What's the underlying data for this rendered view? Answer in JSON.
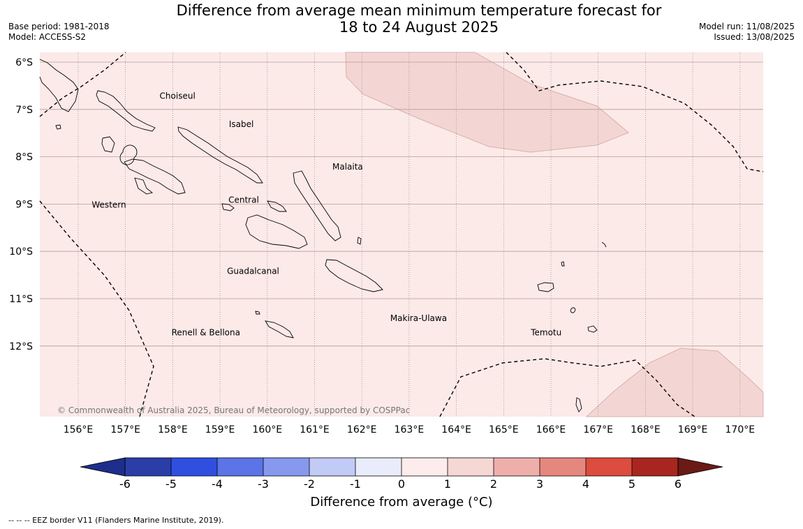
{
  "header": {
    "title_line1": "Difference from average mean minimum temperature forecast for",
    "title_line2": "18 to 24 August 2025",
    "base_period": "Base period: 1981-2018",
    "model": "Model: ACCESS-S2",
    "model_run": "Model run: 11/08/2025",
    "issued": "Issued: 13/08/2025"
  },
  "map": {
    "lat_labels": [
      "6°S",
      "7°S",
      "8°S",
      "9°S",
      "10°S",
      "11°S",
      "12°S"
    ],
    "lon_labels": [
      "156°E",
      "157°E",
      "158°E",
      "159°E",
      "160°E",
      "161°E",
      "162°E",
      "163°E",
      "164°E",
      "165°E",
      "166°E",
      "167°E",
      "168°E",
      "169°E",
      "170°E"
    ],
    "regions": [
      {
        "name": "Choiseul",
        "lon": 158.1,
        "lat": -6.7
      },
      {
        "name": "Isabel",
        "lon": 159.45,
        "lat": -7.3
      },
      {
        "name": "Malaita",
        "lon": 161.7,
        "lat": -8.2
      },
      {
        "name": "Western",
        "lon": 156.65,
        "lat": -9.0
      },
      {
        "name": "Central",
        "lon": 159.5,
        "lat": -8.9
      },
      {
        "name": "Guadalcanal",
        "lon": 159.7,
        "lat": -10.4
      },
      {
        "name": "Makira-Ulawa",
        "lon": 163.2,
        "lat": -11.4
      },
      {
        "name": "Renell & Bellona",
        "lon": 158.7,
        "lat": -11.7
      },
      {
        "name": "Temotu",
        "lon": 165.9,
        "lat": -11.7
      }
    ],
    "copyright": "© Commonwealth of Australia 2025, Bureau of Meteorology, supported by COSPPac",
    "background_category": "0 to 1",
    "background_color": "#fbeae8",
    "anomaly_color": "#f3d6d3"
  },
  "legend": {
    "ticks": [
      "-6",
      "-5",
      "-4",
      "-3",
      "-2",
      "-1",
      "0",
      "1",
      "2",
      "3",
      "4",
      "5",
      "6"
    ],
    "colors": [
      "#1e2e8c",
      "#2b3ea8",
      "#2f4fe0",
      "#5b74e6",
      "#8799ee",
      "#c2cbf6",
      "#e9ecfb",
      "#fceceb",
      "#f5d7d4",
      "#eeafab",
      "#e6877f",
      "#dc4c3f",
      "#a8261f",
      "#6b1a15"
    ],
    "label": "Difference from average (°C)"
  },
  "footer": {
    "eez_note": "--  --  -- EEZ border V11 (Flanders Marine Institute, 2019)."
  }
}
